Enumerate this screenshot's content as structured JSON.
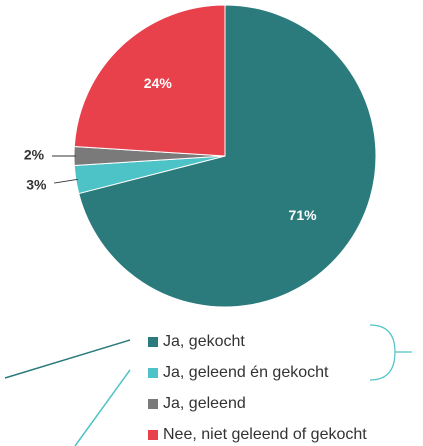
{
  "chart_data": {
    "type": "pie",
    "categories": [
      "Ja, gekocht",
      "Ja, geleend én gekocht",
      "Ja, geleend",
      "Nee, niet geleend of gekocht"
    ],
    "values": [
      71,
      3,
      2,
      24
    ],
    "value_labels": [
      "71%",
      "3%",
      "2%",
      "24%"
    ],
    "colors": [
      "#2b7b7d",
      "#4dc3c7",
      "#7a7a7a",
      "#e8414b"
    ]
  }
}
